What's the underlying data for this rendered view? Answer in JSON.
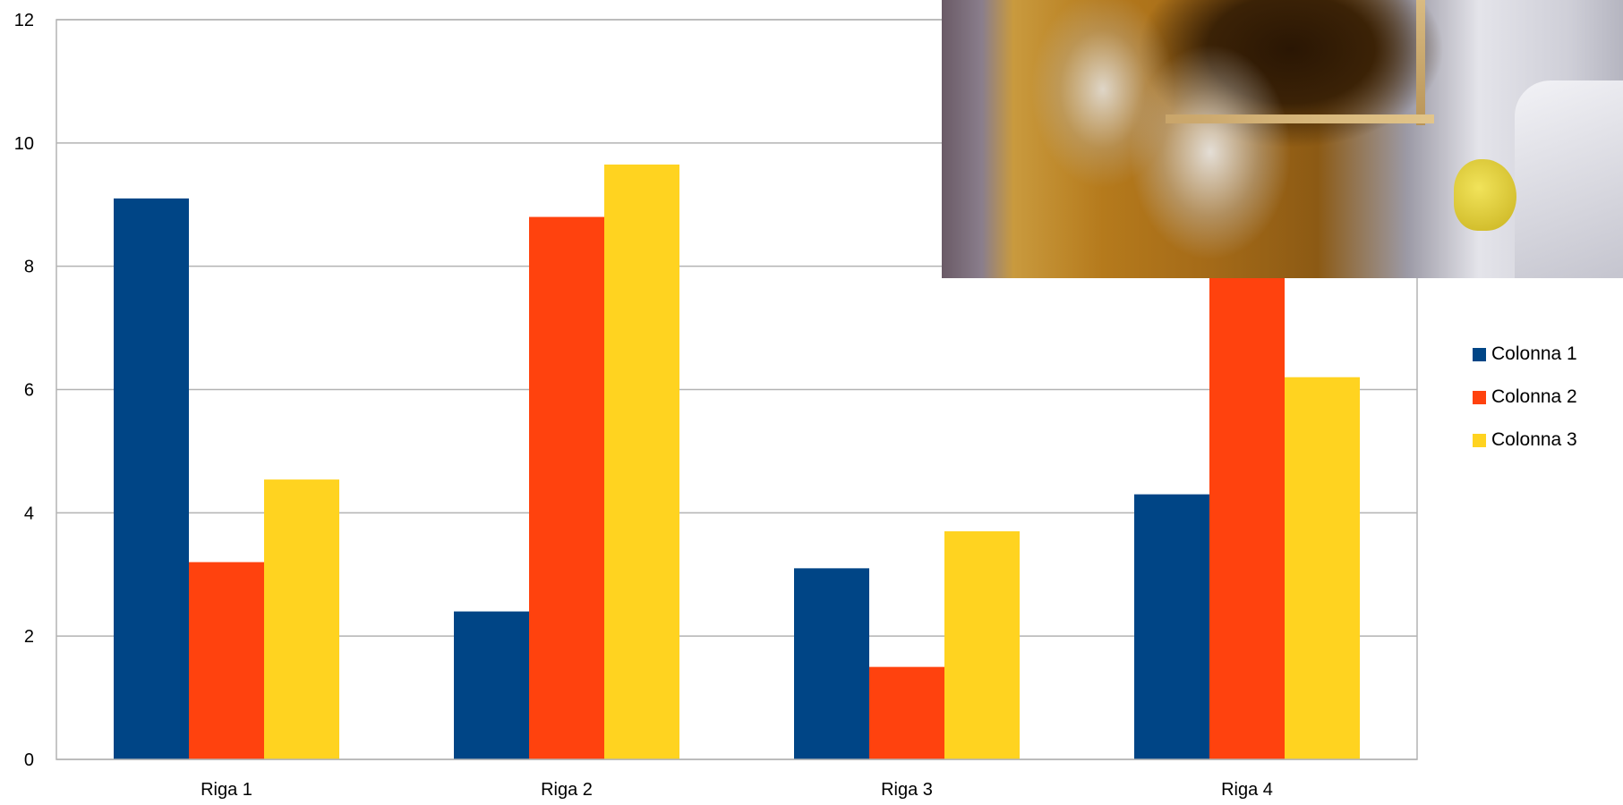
{
  "chart_data": {
    "type": "bar",
    "categories": [
      "Riga 1",
      "Riga 2",
      "Riga 3",
      "Riga 4"
    ],
    "series": [
      {
        "name": "Colonna 1",
        "color": "#004586",
        "values": [
          9.1,
          2.4,
          3.1,
          4.3
        ]
      },
      {
        "name": "Colonna 2",
        "color": "#ff420e",
        "values": [
          3.2,
          8.8,
          1.5,
          9.02
        ]
      },
      {
        "name": "Colonna 3",
        "color": "#ffd320",
        "values": [
          4.54,
          9.65,
          3.7,
          6.2
        ]
      }
    ],
    "ylim": [
      0,
      12
    ],
    "yticks": [
      "0",
      "2",
      "4",
      "6",
      "8",
      "10",
      "12"
    ],
    "grid": true,
    "legend_position": "right",
    "title": "",
    "xlabel": "",
    "ylabel": ""
  },
  "overlay": {
    "type": "photo",
    "icon": "beekeeper-smoke-photo"
  },
  "colors": {
    "grid": "#b3b3b3",
    "axis": "#b3b3b3",
    "background": "#ffffff"
  }
}
